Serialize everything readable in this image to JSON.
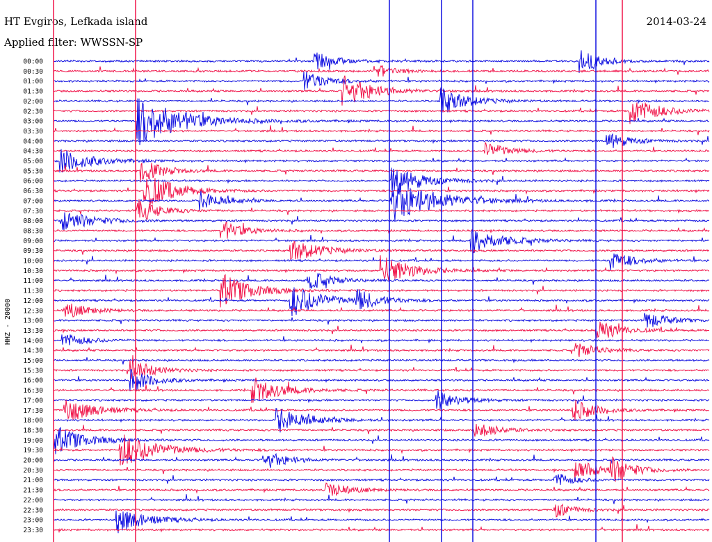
{
  "header": {
    "station": "HT Evgiros, Lefkada island",
    "filter": "Applied filter: WWSSN-SP",
    "date": "2014-03-24"
  },
  "chart_data": {
    "type": "line",
    "title": "HT Evgiros, Lefkada island",
    "subtitle": "Applied filter: WWSSN-SP",
    "date": "2014-03-24",
    "ylabel": "HHZ - 20000",
    "row_labels": [
      "00:00",
      "00:30",
      "01:00",
      "01:30",
      "02:00",
      "02:30",
      "03:00",
      "03:30",
      "04:00",
      "04:30",
      "05:00",
      "05:30",
      "06:00",
      "06:30",
      "07:00",
      "07:30",
      "08:00",
      "08:30",
      "09:00",
      "09:30",
      "10:00",
      "10:30",
      "11:00",
      "11:30",
      "12:00",
      "12:30",
      "13:00",
      "13:30",
      "14:00",
      "14:30",
      "15:00",
      "15:30",
      "16:00",
      "16:30",
      "17:00",
      "17:30",
      "18:00",
      "18:30",
      "19:00",
      "19:30",
      "20:00",
      "20:30",
      "21:00",
      "21:30",
      "22:00",
      "22:30",
      "23:00",
      "23:30"
    ],
    "row_minutes": 30,
    "colors": {
      "even_rows": "#1010e0",
      "odd_rows": "#f0154a"
    }
  }
}
